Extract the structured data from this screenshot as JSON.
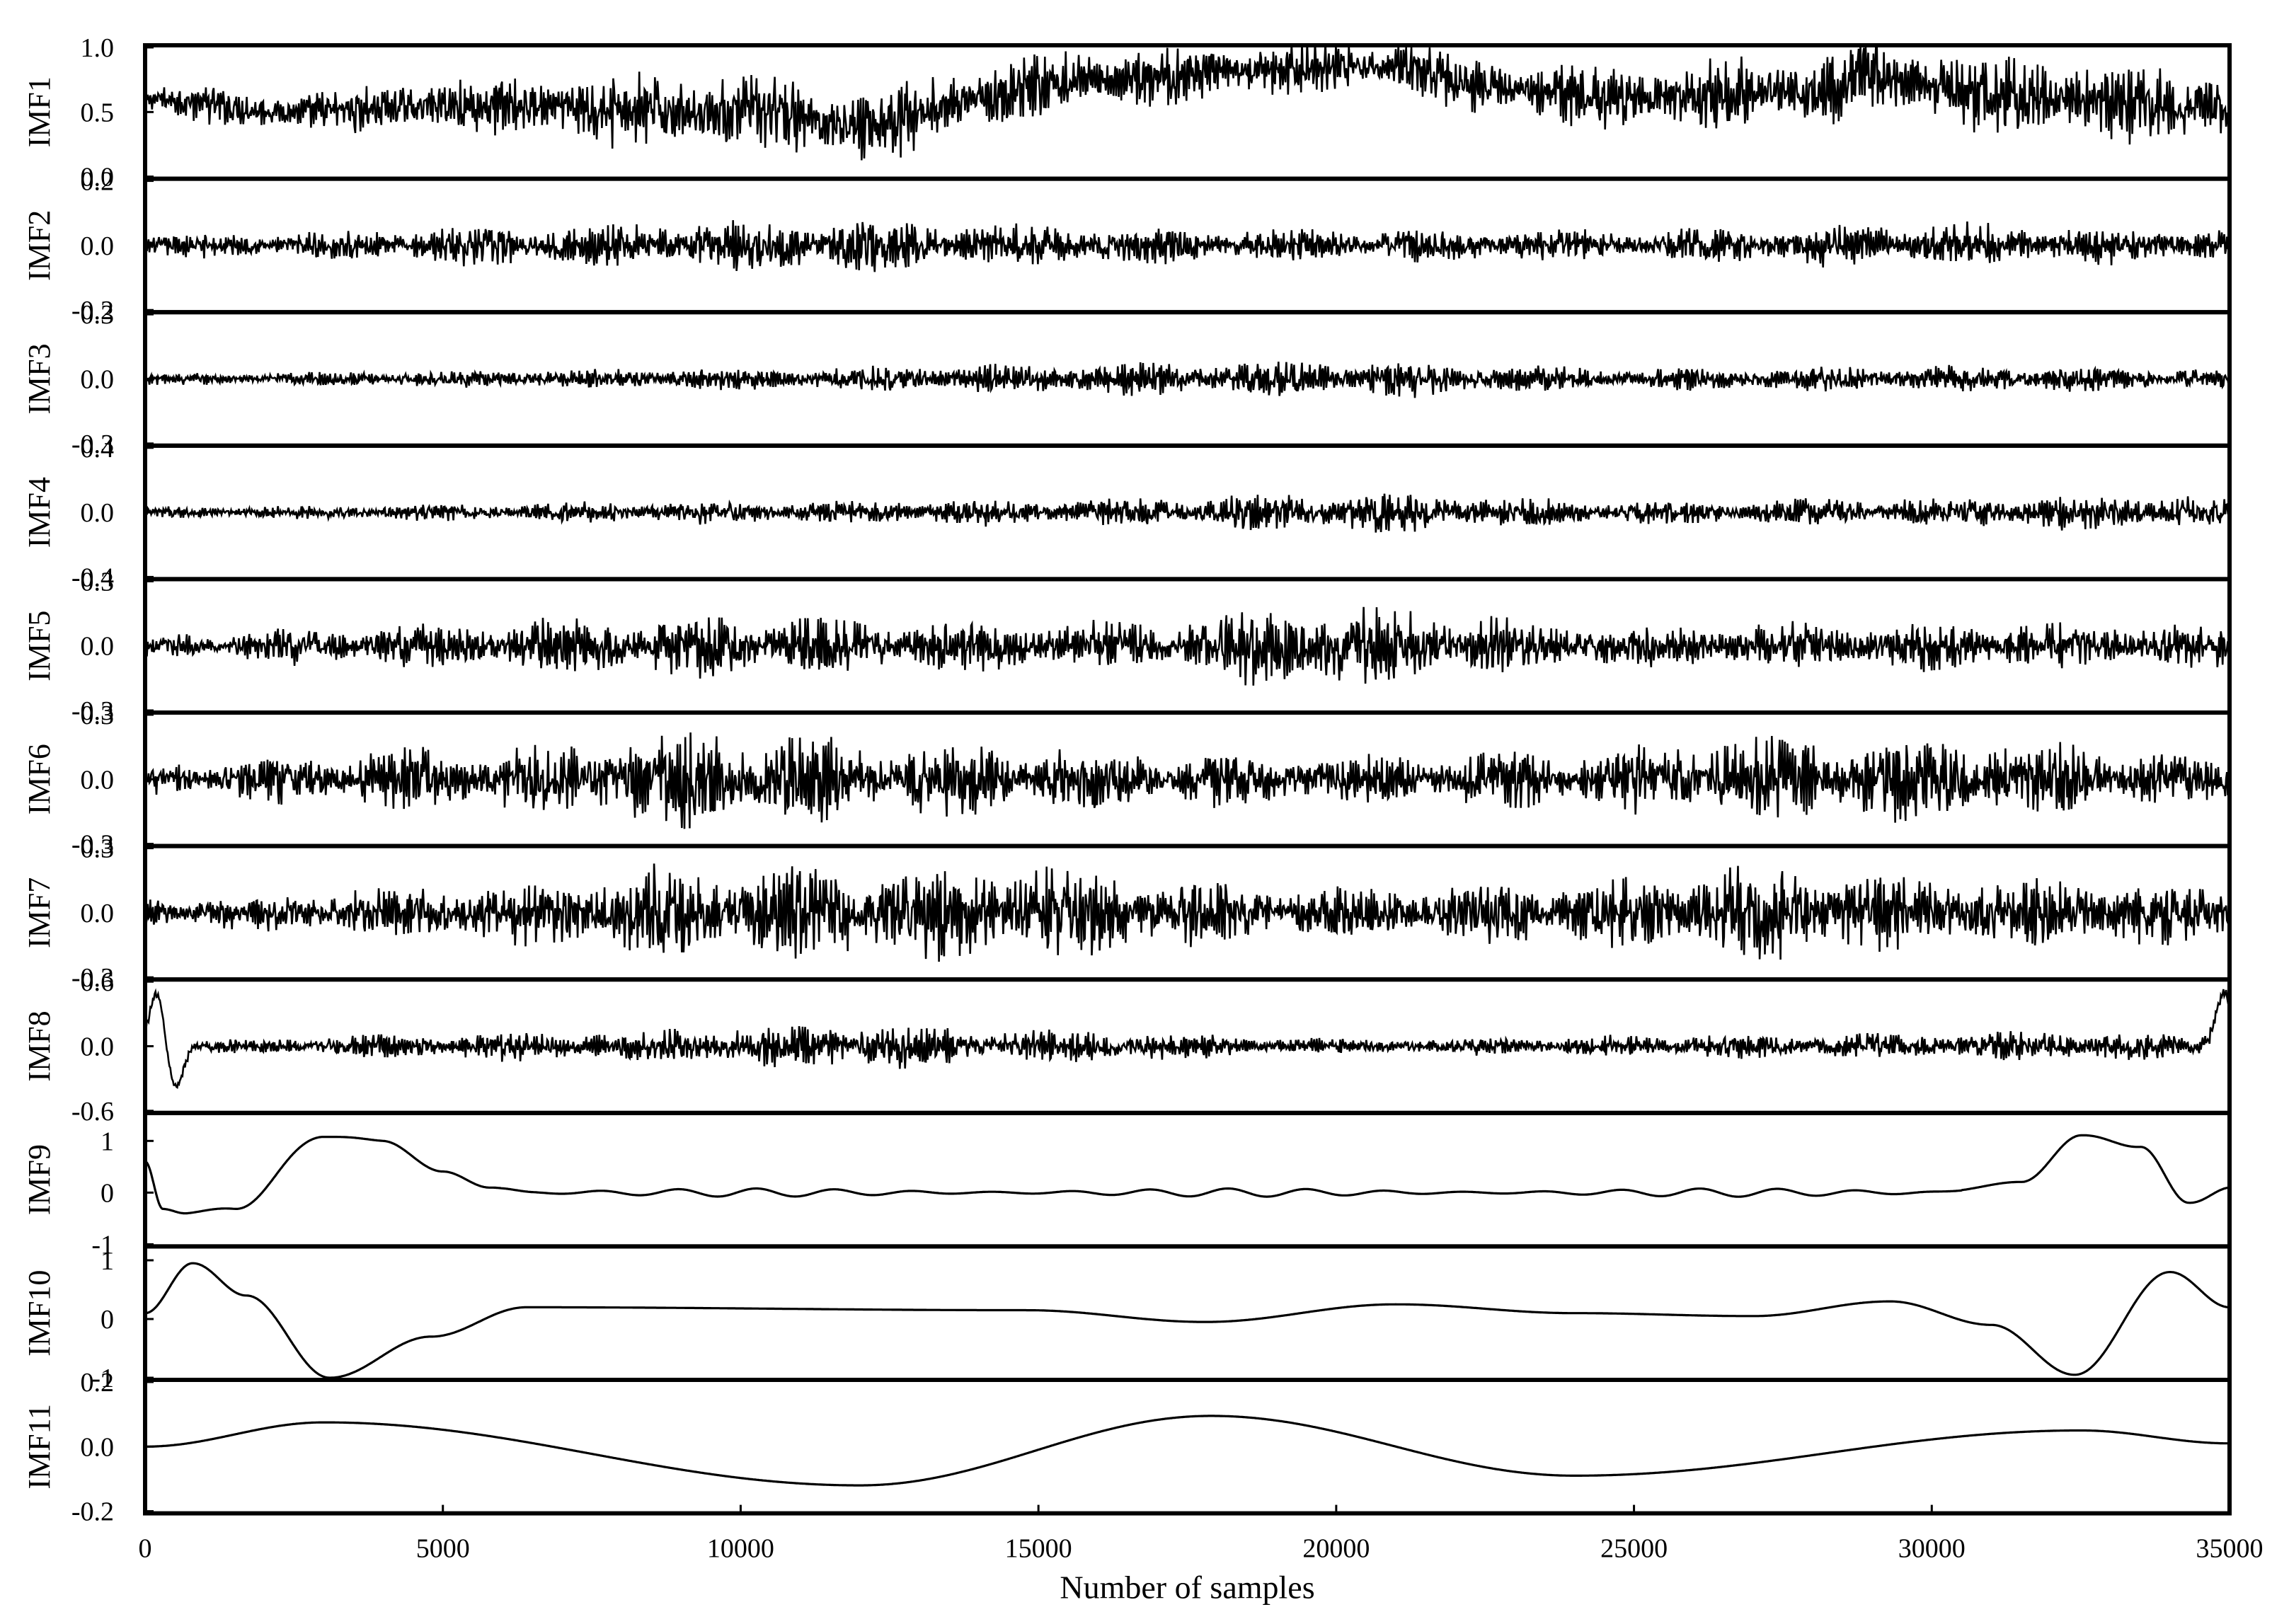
{
  "chart_data": {
    "type": "line",
    "xlabel": "Number of samples",
    "xlim": [
      0,
      35000
    ],
    "xticks": [
      0,
      5000,
      10000,
      15000,
      20000,
      25000,
      30000,
      35000
    ],
    "xtick_labels": [
      "0",
      "5000",
      "10000",
      "15000",
      "20000",
      "25000",
      "30000",
      "35000"
    ],
    "panels": [
      {
        "name": "IMF1",
        "ylim": [
          0.0,
          1.0
        ],
        "yticks": [
          0.0,
          0.5,
          1.0
        ],
        "ytick_labels": [
          "0.0",
          "0.5",
          "1.0"
        ],
        "signal": {
          "kind": "noisy",
          "base": 0.55,
          "envelope": [
            [
              0,
              0.6
            ],
            [
              2500,
              0.5
            ],
            [
              5000,
              0.55
            ],
            [
              10000,
              0.5
            ],
            [
              12000,
              0.4
            ],
            [
              14000,
              0.6
            ],
            [
              16000,
              0.75
            ],
            [
              18000,
              0.8
            ],
            [
              20000,
              0.85
            ],
            [
              21000,
              0.85
            ],
            [
              22500,
              0.7
            ],
            [
              25000,
              0.6
            ],
            [
              28000,
              0.68
            ],
            [
              29000,
              0.78
            ],
            [
              31000,
              0.62
            ],
            [
              35000,
              0.55
            ]
          ],
          "amp": [
            [
              0,
              0.1
            ],
            [
              10000,
              0.22
            ],
            [
              20000,
              0.15
            ],
            [
              30000,
              0.22
            ],
            [
              35000,
              0.25
            ]
          ]
        }
      },
      {
        "name": "IMF2",
        "ylim": [
          -0.2,
          0.2
        ],
        "yticks": [
          -0.2,
          0.0,
          0.2
        ],
        "ytick_labels": [
          "-0.2",
          "0.0",
          "0.2"
        ],
        "signal": {
          "kind": "noisy",
          "base": 0.0,
          "amp": [
            [
              0,
              0.025
            ],
            [
              7000,
              0.045
            ],
            [
              11500,
              0.06
            ],
            [
              15000,
              0.045
            ],
            [
              20000,
              0.035
            ],
            [
              25000,
              0.035
            ],
            [
              30000,
              0.05
            ],
            [
              35000,
              0.035
            ]
          ]
        }
      },
      {
        "name": "IMF3",
        "ylim": [
          -0.3,
          0.3
        ],
        "yticks": [
          -0.3,
          0.0,
          0.3
        ],
        "ytick_labels": [
          "-0.3",
          "0.0",
          "0.3"
        ],
        "signal": {
          "kind": "noisy",
          "base": 0.0,
          "amp": [
            [
              0,
              0.02
            ],
            [
              10000,
              0.035
            ],
            [
              16000,
              0.055
            ],
            [
              20500,
              0.06
            ],
            [
              25000,
              0.035
            ],
            [
              31000,
              0.045
            ],
            [
              35000,
              0.035
            ]
          ]
        }
      },
      {
        "name": "IMF4",
        "ylim": [
          -0.4,
          0.4
        ],
        "yticks": [
          -0.4,
          0.0,
          0.4
        ],
        "ytick_labels": [
          "-0.4",
          "0.0",
          "0.4"
        ],
        "signal": {
          "kind": "noisy",
          "base": 0.0,
          "amp": [
            [
              0,
              0.025
            ],
            [
              10000,
              0.05
            ],
            [
              16000,
              0.06
            ],
            [
              20500,
              0.09
            ],
            [
              25000,
              0.05
            ],
            [
              34000,
              0.08
            ],
            [
              35000,
              0.06
            ]
          ]
        }
      },
      {
        "name": "IMF5",
        "ylim": [
          -0.3,
          0.3
        ],
        "yticks": [
          -0.3,
          0.0,
          0.3
        ],
        "ytick_labels": [
          "-0.3",
          "0.0",
          "0.3"
        ],
        "signal": {
          "kind": "noisy",
          "base": 0.0,
          "amp": [
            [
              0,
              0.04
            ],
            [
              4000,
              0.07
            ],
            [
              8500,
              0.1
            ],
            [
              16500,
              0.08
            ],
            [
              19400,
              0.14
            ],
            [
              25000,
              0.07
            ],
            [
              30000,
              0.08
            ],
            [
              35000,
              0.07
            ]
          ]
        }
      },
      {
        "name": "IMF6",
        "ylim": [
          -0.3,
          0.3
        ],
        "yticks": [
          -0.3,
          0.0,
          0.3
        ],
        "ytick_labels": [
          "-0.3",
          "0.0",
          "0.3"
        ],
        "signal": {
          "kind": "noisy",
          "base": 0.0,
          "amp": [
            [
              0,
              0.06
            ],
            [
              5500,
              0.11
            ],
            [
              9000,
              0.16
            ],
            [
              11500,
              0.14
            ],
            [
              13000,
              0.12
            ],
            [
              20000,
              0.08
            ],
            [
              24000,
              0.1
            ],
            [
              26800,
              0.14
            ],
            [
              30200,
              0.14
            ],
            [
              35000,
              0.08
            ]
          ]
        }
      },
      {
        "name": "IMF7",
        "ylim": [
          -0.3,
          0.3
        ],
        "yticks": [
          -0.3,
          0.0,
          0.3
        ],
        "ytick_labels": [
          "-0.3",
          "0.0",
          "0.3"
        ],
        "signal": {
          "kind": "noisy",
          "base": 0.0,
          "amp": [
            [
              0,
              0.05
            ],
            [
              6000,
              0.1
            ],
            [
              9000,
              0.16
            ],
            [
              14500,
              0.16
            ],
            [
              20000,
              0.08
            ],
            [
              25000,
              0.12
            ],
            [
              27000,
              0.16
            ],
            [
              30000,
              0.12
            ],
            [
              35000,
              0.1
            ]
          ]
        }
      },
      {
        "name": "IMF8",
        "ylim": [
          -0.6,
          0.6
        ],
        "yticks": [
          -0.6,
          0.0,
          0.6
        ],
        "ytick_labels": [
          "-0.6",
          "0.0",
          "0.6"
        ],
        "signal": {
          "kind": "noisy",
          "base": 0.0,
          "amp": [
            [
              0,
              0.04
            ],
            [
              7000,
              0.1
            ],
            [
              12000,
              0.16
            ],
            [
              15000,
              0.12
            ],
            [
              20000,
              0.05
            ],
            [
              27000,
              0.08
            ],
            [
              33000,
              0.1
            ],
            [
              35000,
              0.08
            ]
          ],
          "spikes": [
            [
              200,
              0.5
            ],
            [
              500,
              -0.4
            ],
            [
              34900,
              0.5
            ]
          ]
        }
      },
      {
        "name": "IMF9",
        "ylim": [
          -1,
          1.5
        ],
        "yticks": [
          -1,
          0,
          1
        ],
        "ytick_labels": [
          "-1",
          "0",
          "1"
        ],
        "signal": {
          "kind": "curve",
          "points": [
            [
              0,
              0.6
            ],
            [
              300,
              -0.3
            ],
            [
              700,
              -0.4
            ],
            [
              1500,
              -0.3
            ],
            [
              3000,
              1.1
            ],
            [
              4000,
              1.0
            ],
            [
              5000,
              0.4
            ],
            [
              5800,
              0.1
            ],
            [
              6500,
              0.0
            ],
            [
              30000,
              0.0
            ],
            [
              31500,
              0.2
            ],
            [
              32500,
              1.1
            ],
            [
              33500,
              0.9
            ],
            [
              34300,
              -0.2
            ],
            [
              35000,
              0.1
            ]
          ],
          "ripple": 0.08
        }
      },
      {
        "name": "IMF10",
        "ylim": [
          -1,
          1.2
        ],
        "yticks": [
          -1,
          0,
          1
        ],
        "ytick_labels": [
          "-1",
          "0",
          "1"
        ],
        "signal": {
          "kind": "curve",
          "points": [
            [
              0,
              0.1
            ],
            [
              800,
              0.95
            ],
            [
              1700,
              0.4
            ],
            [
              3100,
              -1.0
            ],
            [
              4800,
              -0.3
            ],
            [
              6400,
              0.2
            ],
            [
              14800,
              0.15
            ],
            [
              17800,
              -0.05
            ],
            [
              21000,
              0.25
            ],
            [
              24000,
              0.1
            ],
            [
              27000,
              0.05
            ],
            [
              29300,
              0.3
            ],
            [
              31000,
              -0.1
            ],
            [
              32400,
              -0.95
            ],
            [
              34000,
              0.8
            ],
            [
              35000,
              0.2
            ]
          ]
        }
      },
      {
        "name": "IMF11",
        "ylim": [
          -0.2,
          0.2
        ],
        "yticks": [
          -0.2,
          0.0,
          0.2
        ],
        "ytick_labels": [
          "-0.2",
          "0.0",
          "0.2"
        ],
        "signal": {
          "kind": "curve",
          "points": [
            [
              0,
              0.0
            ],
            [
              3000,
              0.075
            ],
            [
              12000,
              -0.12
            ],
            [
              17900,
              0.095
            ],
            [
              24000,
              -0.09
            ],
            [
              32500,
              0.05
            ],
            [
              35000,
              0.01
            ]
          ]
        }
      }
    ]
  }
}
